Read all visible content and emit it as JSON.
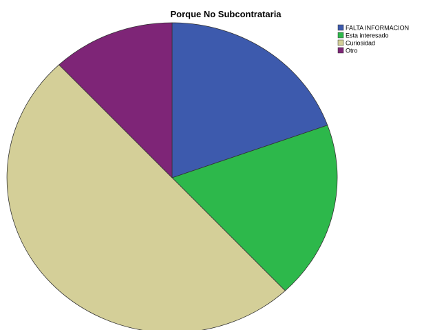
{
  "chart_data": {
    "type": "pie",
    "title": "Porque No Subcontrataria",
    "categories": [
      "FALTA INFORMACION",
      "Esta interesado",
      "Curiosidad",
      "Otro"
    ],
    "values": [
      19.5,
      18.5,
      50,
      12
    ],
    "colors": [
      "#3d5aad",
      "#2db84b",
      "#d4cf98",
      "#7e2577"
    ],
    "start_angle_deg": 0,
    "direction": "clockwise",
    "legend": "top-right"
  }
}
